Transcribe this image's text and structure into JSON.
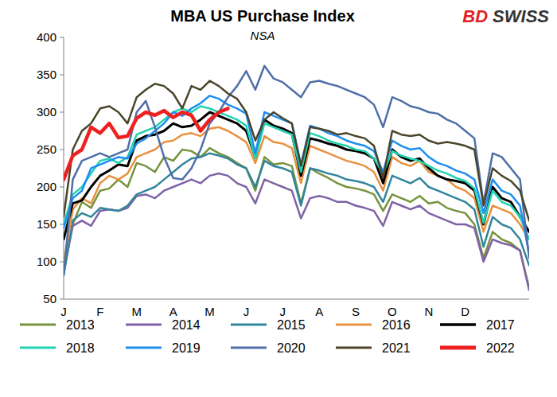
{
  "chart_data": {
    "type": "line",
    "title": "MBA US Purchase Index",
    "subtitle": "NSA",
    "annotations": [
      "BDSWISS"
    ],
    "categories": [
      "J",
      null,
      null,
      null,
      "F",
      null,
      null,
      null,
      "M",
      null,
      null,
      null,
      "A",
      null,
      null,
      null,
      "M",
      null,
      null,
      null,
      "J",
      null,
      null,
      null,
      "J",
      null,
      null,
      null,
      "A",
      null,
      null,
      null,
      "S",
      null,
      null,
      null,
      "O",
      null,
      null,
      null,
      "N",
      null,
      null,
      null,
      "D",
      null,
      null,
      null,
      null,
      null,
      null,
      null
    ],
    "ylim": [
      50,
      400
    ],
    "yticks": [
      50,
      100,
      150,
      200,
      250,
      300,
      350,
      400
    ],
    "grid": false,
    "legend": "bottom",
    "series": [
      {
        "name": "2013",
        "color": "#77933c",
        "values": [
          88,
          150,
          180,
          172,
          195,
          198,
          210,
          200,
          232,
          228,
          220,
          240,
          235,
          250,
          248,
          240,
          252,
          245,
          240,
          232,
          225,
          195,
          240,
          230,
          232,
          228,
          178,
          225,
          218,
          212,
          205,
          200,
          198,
          195,
          190,
          168,
          190,
          185,
          180,
          188,
          178,
          180,
          172,
          168,
          165,
          150,
          105,
          140,
          130,
          125,
          115,
          65
        ]
      },
      {
        "name": "2014",
        "color": "#7f62a6",
        "values": [
          85,
          148,
          155,
          148,
          168,
          170,
          168,
          172,
          188,
          190,
          185,
          195,
          200,
          205,
          210,
          205,
          215,
          218,
          215,
          205,
          200,
          178,
          210,
          205,
          200,
          195,
          158,
          185,
          188,
          185,
          180,
          180,
          175,
          172,
          168,
          148,
          180,
          175,
          170,
          175,
          165,
          160,
          155,
          150,
          150,
          145,
          100,
          130,
          125,
          122,
          115,
          62
        ]
      },
      {
        "name": "2015",
        "color": "#31859c",
        "values": [
          82,
          155,
          165,
          160,
          172,
          170,
          168,
          175,
          190,
          195,
          200,
          210,
          220,
          230,
          238,
          240,
          245,
          242,
          238,
          230,
          225,
          200,
          235,
          228,
          225,
          220,
          175,
          225,
          222,
          218,
          215,
          210,
          208,
          205,
          200,
          180,
          215,
          210,
          205,
          212,
          200,
          195,
          190,
          185,
          180,
          170,
          120,
          160,
          150,
          145,
          130,
          95
        ]
      },
      {
        "name": "2016",
        "color": "#e8913f",
        "values": [
          98,
          170,
          185,
          178,
          205,
          215,
          210,
          218,
          240,
          245,
          250,
          260,
          262,
          270,
          272,
          268,
          278,
          280,
          275,
          268,
          260,
          232,
          268,
          260,
          258,
          252,
          205,
          255,
          250,
          245,
          240,
          235,
          232,
          228,
          220,
          195,
          240,
          232,
          228,
          235,
          220,
          215,
          210,
          200,
          195,
          185,
          140,
          175,
          170,
          165,
          150,
          130
        ]
      },
      {
        "name": "2017",
        "color": "#000000",
        "values": [
          130,
          178,
          182,
          200,
          215,
          222,
          230,
          228,
          262,
          268,
          270,
          275,
          285,
          280,
          282,
          290,
          300,
          295,
          290,
          285,
          275,
          240,
          290,
          282,
          278,
          272,
          215,
          265,
          262,
          258,
          255,
          250,
          248,
          245,
          238,
          205,
          250,
          240,
          235,
          238,
          225,
          215,
          210,
          208,
          205,
          195,
          150,
          200,
          185,
          180,
          160,
          140
        ]
      },
      {
        "name": "2018",
        "color": "#20d3b0",
        "values": [
          150,
          190,
          200,
          218,
          235,
          238,
          232,
          240,
          270,
          275,
          280,
          290,
          300,
          305,
          300,
          308,
          305,
          300,
          295,
          290,
          282,
          238,
          285,
          280,
          275,
          270,
          220,
          272,
          268,
          262,
          258,
          255,
          250,
          248,
          238,
          218,
          248,
          242,
          238,
          235,
          228,
          222,
          218,
          212,
          208,
          198,
          152,
          195,
          180,
          175,
          160,
          130
        ]
      },
      {
        "name": "2019",
        "color": "#1f8ef1",
        "values": [
          145,
          185,
          195,
          225,
          230,
          235,
          240,
          238,
          258,
          265,
          275,
          285,
          300,
          295,
          305,
          312,
          322,
          318,
          310,
          305,
          298,
          245,
          300,
          295,
          290,
          285,
          230,
          282,
          278,
          272,
          268,
          262,
          258,
          255,
          248,
          220,
          262,
          255,
          250,
          252,
          240,
          232,
          228,
          222,
          218,
          210,
          165,
          210,
          195,
          190,
          175,
          110
        ]
      },
      {
        "name": "2020",
        "color": "#4f6fa8",
        "values": [
          82,
          210,
          235,
          240,
          245,
          240,
          245,
          250,
          300,
          315,
          280,
          240,
          212,
          210,
          225,
          250,
          285,
          300,
          320,
          335,
          355,
          330,
          362,
          345,
          340,
          330,
          320,
          340,
          342,
          338,
          335,
          330,
          325,
          320,
          310,
          280,
          320,
          315,
          308,
          305,
          300,
          298,
          290,
          285,
          275,
          265,
          178,
          245,
          240,
          225,
          210,
          105
        ]
      },
      {
        "name": "2021",
        "color": "#4a452a",
        "values": [
          160,
          250,
          275,
          285,
          305,
          308,
          300,
          285,
          320,
          330,
          338,
          335,
          325,
          305,
          335,
          330,
          342,
          335,
          325,
          318,
          300,
          262,
          290,
          300,
          292,
          285,
          228,
          280,
          278,
          275,
          270,
          272,
          268,
          265,
          255,
          212,
          275,
          270,
          268,
          270,
          262,
          258,
          260,
          258,
          255,
          250,
          175,
          225,
          215,
          208,
          195,
          155
        ]
      },
      {
        "name": "2022",
        "color": "#ee2020",
        "values": [
          210,
          242,
          250,
          280,
          272,
          285,
          266,
          268,
          292,
          300,
          296,
          302,
          293,
          300,
          296,
          275,
          290,
          300,
          305,
          null,
          null,
          null,
          null,
          null,
          null,
          null,
          null,
          null,
          null,
          null,
          null,
          null,
          null,
          null,
          null,
          null,
          null,
          null,
          null,
          null,
          null,
          null,
          null,
          null,
          null,
          null,
          null,
          null,
          null,
          null,
          null,
          null
        ]
      }
    ]
  }
}
